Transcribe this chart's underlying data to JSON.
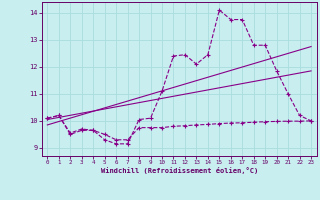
{
  "xlabel": "Windchill (Refroidissement éolien,°C)",
  "bg_color": "#c8eef0",
  "line_color": "#880088",
  "grid_color": "#aadddd",
  "axis_color": "#660066",
  "text_color": "#660066",
  "xlim": [
    -0.5,
    23.5
  ],
  "ylim": [
    8.7,
    14.4
  ],
  "xticks": [
    0,
    1,
    2,
    3,
    4,
    5,
    6,
    7,
    8,
    9,
    10,
    11,
    12,
    13,
    14,
    15,
    16,
    17,
    18,
    19,
    20,
    21,
    22,
    23
  ],
  "yticks": [
    9,
    10,
    11,
    12,
    13,
    14
  ],
  "line1_x": [
    0,
    1,
    2,
    3,
    4,
    5,
    6,
    7,
    8,
    9,
    10,
    11,
    12,
    13,
    14,
    15,
    16,
    17,
    18,
    19,
    20,
    21,
    22,
    23
  ],
  "line1_y": [
    10.1,
    10.2,
    9.5,
    9.65,
    9.65,
    9.3,
    9.15,
    9.15,
    10.05,
    10.1,
    11.1,
    12.4,
    12.45,
    12.1,
    12.45,
    14.1,
    13.75,
    13.75,
    12.8,
    12.8,
    11.85,
    11.0,
    10.2,
    10.0
  ],
  "line2_x": [
    0,
    1,
    2,
    3,
    4,
    5,
    6,
    7,
    8,
    9,
    10,
    11,
    12,
    13,
    14,
    15,
    16,
    17,
    18,
    19,
    20,
    21,
    22,
    23
  ],
  "line2_y": [
    10.1,
    10.2,
    9.55,
    9.7,
    9.65,
    9.5,
    9.3,
    9.3,
    9.75,
    9.75,
    9.75,
    9.8,
    9.82,
    9.85,
    9.87,
    9.9,
    9.92,
    9.93,
    9.95,
    9.97,
    9.98,
    9.99,
    9.99,
    10.0
  ],
  "line3_x": [
    0,
    23
  ],
  "line3_y": [
    10.05,
    11.85
  ],
  "line4_x": [
    0,
    23
  ],
  "line4_y": [
    9.85,
    12.75
  ]
}
